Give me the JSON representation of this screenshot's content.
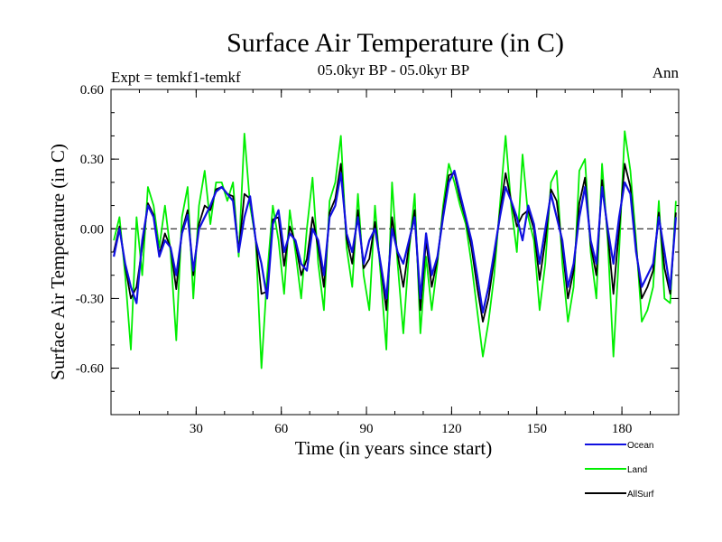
{
  "chart_data": {
    "type": "line",
    "title": "Surface Air Temperature (in C)",
    "subtitle_left": "Expt = temkf1-temkf",
    "subtitle_center": "05.0kyr BP - 05.0kyr BP",
    "subtitle_right": "Ann",
    "xlabel": "Time (in years since start)",
    "ylabel": "Surface Air Temperature (in C)",
    "xlim": [
      0,
      200
    ],
    "ylim": [
      -0.8,
      0.6
    ],
    "xticks": [
      30,
      60,
      90,
      120,
      150,
      180
    ],
    "xtick_labels": [
      "30",
      "60",
      "90",
      "120",
      "150",
      "180"
    ],
    "yticks": [
      0.6,
      0.3,
      0.0,
      -0.3,
      -0.6
    ],
    "ytick_labels": [
      "0.60",
      "0.30",
      "0.00",
      "-0.30",
      "-0.60"
    ],
    "zero_line": true,
    "legend_position": "bottom-right",
    "series": [
      {
        "name": "Ocean",
        "color": "#1010e0",
        "x": [
          1,
          3,
          5,
          7,
          9,
          11,
          13,
          15,
          17,
          19,
          21,
          23,
          25,
          27,
          29,
          31,
          33,
          35,
          37,
          39,
          41,
          43,
          45,
          47,
          49,
          51,
          53,
          55,
          57,
          59,
          61,
          63,
          65,
          67,
          69,
          71,
          73,
          75,
          77,
          79,
          81,
          83,
          85,
          87,
          89,
          91,
          93,
          95,
          97,
          99,
          101,
          103,
          105,
          107,
          109,
          111,
          113,
          115,
          117,
          119,
          121,
          123,
          125,
          127,
          129,
          131,
          133,
          135,
          137,
          139,
          141,
          143,
          145,
          147,
          149,
          151,
          153,
          155,
          157,
          159,
          161,
          163,
          165,
          167,
          169,
          171,
          173,
          175,
          177,
          179,
          181,
          183,
          185,
          187,
          189,
          191,
          193,
          195,
          197,
          199
        ],
        "values": [
          -0.12,
          0.0,
          -0.15,
          -0.25,
          -0.32,
          -0.05,
          0.1,
          0.05,
          -0.12,
          -0.05,
          -0.08,
          -0.2,
          -0.02,
          0.06,
          -0.18,
          0.0,
          0.05,
          0.1,
          0.16,
          0.18,
          0.15,
          0.12,
          -0.1,
          0.05,
          0.14,
          -0.05,
          -0.15,
          -0.3,
          0.02,
          0.08,
          -0.1,
          -0.02,
          -0.05,
          -0.15,
          -0.18,
          0.0,
          -0.05,
          -0.2,
          0.05,
          0.1,
          0.24,
          -0.02,
          -0.1,
          0.05,
          -0.15,
          -0.05,
          0.0,
          -0.15,
          -0.3,
          0.0,
          -0.1,
          -0.15,
          -0.05,
          0.05,
          -0.3,
          -0.02,
          -0.2,
          -0.12,
          0.05,
          0.2,
          0.25,
          0.15,
          0.05,
          -0.05,
          -0.2,
          -0.36,
          -0.25,
          -0.1,
          0.05,
          0.18,
          0.12,
          0.05,
          -0.05,
          0.1,
          0.02,
          -0.15,
          0.0,
          0.15,
          0.05,
          -0.05,
          -0.25,
          -0.15,
          0.05,
          0.18,
          -0.05,
          -0.15,
          0.18,
          0.0,
          -0.15,
          0.05,
          0.2,
          0.15,
          -0.1,
          -0.25,
          -0.2,
          -0.15,
          0.05,
          -0.1,
          -0.26,
          0.05
        ]
      },
      {
        "name": "Land",
        "color": "#00ee00",
        "x": [
          1,
          3,
          5,
          7,
          9,
          11,
          13,
          15,
          17,
          19,
          21,
          23,
          25,
          27,
          29,
          31,
          33,
          35,
          37,
          39,
          41,
          43,
          45,
          47,
          49,
          51,
          53,
          55,
          57,
          59,
          61,
          63,
          65,
          67,
          69,
          71,
          73,
          75,
          77,
          79,
          81,
          83,
          85,
          87,
          89,
          91,
          93,
          95,
          97,
          99,
          101,
          103,
          105,
          107,
          109,
          111,
          113,
          115,
          117,
          119,
          121,
          123,
          125,
          127,
          129,
          131,
          133,
          135,
          137,
          139,
          141,
          143,
          145,
          147,
          149,
          151,
          153,
          155,
          157,
          159,
          161,
          163,
          165,
          167,
          169,
          171,
          173,
          175,
          177,
          179,
          181,
          183,
          185,
          187,
          189,
          191,
          193,
          195,
          197,
          199
        ],
        "values": [
          -0.05,
          0.05,
          -0.2,
          -0.52,
          0.05,
          -0.2,
          0.18,
          0.1,
          -0.08,
          0.1,
          -0.1,
          -0.48,
          0.05,
          0.18,
          -0.3,
          0.1,
          0.25,
          0.02,
          0.2,
          0.2,
          0.12,
          0.2,
          -0.12,
          0.41,
          0.1,
          -0.05,
          -0.6,
          -0.2,
          0.1,
          -0.05,
          -0.28,
          0.08,
          -0.1,
          -0.3,
          0.0,
          0.22,
          -0.15,
          -0.35,
          0.12,
          0.2,
          0.4,
          -0.08,
          -0.25,
          0.15,
          -0.2,
          -0.35,
          0.1,
          -0.2,
          -0.52,
          0.2,
          -0.15,
          -0.45,
          -0.1,
          0.15,
          -0.45,
          -0.12,
          -0.35,
          -0.15,
          0.1,
          0.28,
          0.2,
          0.1,
          0.02,
          -0.15,
          -0.35,
          -0.55,
          -0.4,
          -0.2,
          0.1,
          0.4,
          0.1,
          -0.1,
          0.32,
          0.05,
          -0.05,
          -0.35,
          -0.15,
          0.2,
          0.25,
          -0.15,
          -0.4,
          -0.25,
          0.25,
          0.3,
          -0.1,
          -0.3,
          0.28,
          -0.05,
          -0.55,
          -0.1,
          0.42,
          0.25,
          -0.05,
          -0.4,
          -0.35,
          -0.25,
          0.12,
          -0.3,
          -0.32,
          0.12
        ]
      },
      {
        "name": "AllSurf",
        "color": "#000000",
        "x": [
          1,
          3,
          5,
          7,
          9,
          11,
          13,
          15,
          17,
          19,
          21,
          23,
          25,
          27,
          29,
          31,
          33,
          35,
          37,
          39,
          41,
          43,
          45,
          47,
          49,
          51,
          53,
          55,
          57,
          59,
          61,
          63,
          65,
          67,
          69,
          71,
          73,
          75,
          77,
          79,
          81,
          83,
          85,
          87,
          89,
          91,
          93,
          95,
          97,
          99,
          101,
          103,
          105,
          107,
          109,
          111,
          113,
          115,
          117,
          119,
          121,
          123,
          125,
          127,
          129,
          131,
          133,
          135,
          137,
          139,
          141,
          143,
          145,
          147,
          149,
          151,
          153,
          155,
          157,
          159,
          161,
          163,
          165,
          167,
          169,
          171,
          173,
          175,
          177,
          179,
          181,
          183,
          185,
          187,
          189,
          191,
          193,
          195,
          197,
          199
        ],
        "values": [
          -0.1,
          0.01,
          -0.16,
          -0.3,
          -0.25,
          -0.08,
          0.11,
          0.06,
          -0.11,
          -0.02,
          -0.08,
          -0.26,
          -0.01,
          0.08,
          -0.2,
          0.02,
          0.1,
          0.08,
          0.17,
          0.18,
          0.15,
          0.14,
          -0.1,
          0.15,
          0.13,
          -0.05,
          -0.28,
          -0.27,
          0.04,
          0.05,
          -0.16,
          0.01,
          -0.06,
          -0.2,
          -0.13,
          0.05,
          -0.08,
          -0.25,
          0.07,
          0.13,
          0.28,
          -0.04,
          -0.15,
          0.08,
          -0.17,
          -0.13,
          0.03,
          -0.16,
          -0.35,
          0.05,
          -0.11,
          -0.25,
          -0.07,
          0.08,
          -0.35,
          -0.05,
          -0.25,
          -0.13,
          0.07,
          0.23,
          0.24,
          0.13,
          0.04,
          -0.08,
          -0.25,
          -0.4,
          -0.3,
          -0.13,
          0.07,
          0.24,
          0.12,
          0.01,
          0.06,
          0.08,
          0.0,
          -0.22,
          -0.05,
          0.17,
          0.12,
          -0.08,
          -0.3,
          -0.18,
          0.11,
          0.22,
          -0.07,
          -0.2,
          0.21,
          -0.02,
          -0.28,
          0.0,
          0.28,
          0.18,
          -0.08,
          -0.3,
          -0.25,
          -0.18,
          0.07,
          -0.17,
          -0.28,
          0.07
        ]
      }
    ]
  }
}
